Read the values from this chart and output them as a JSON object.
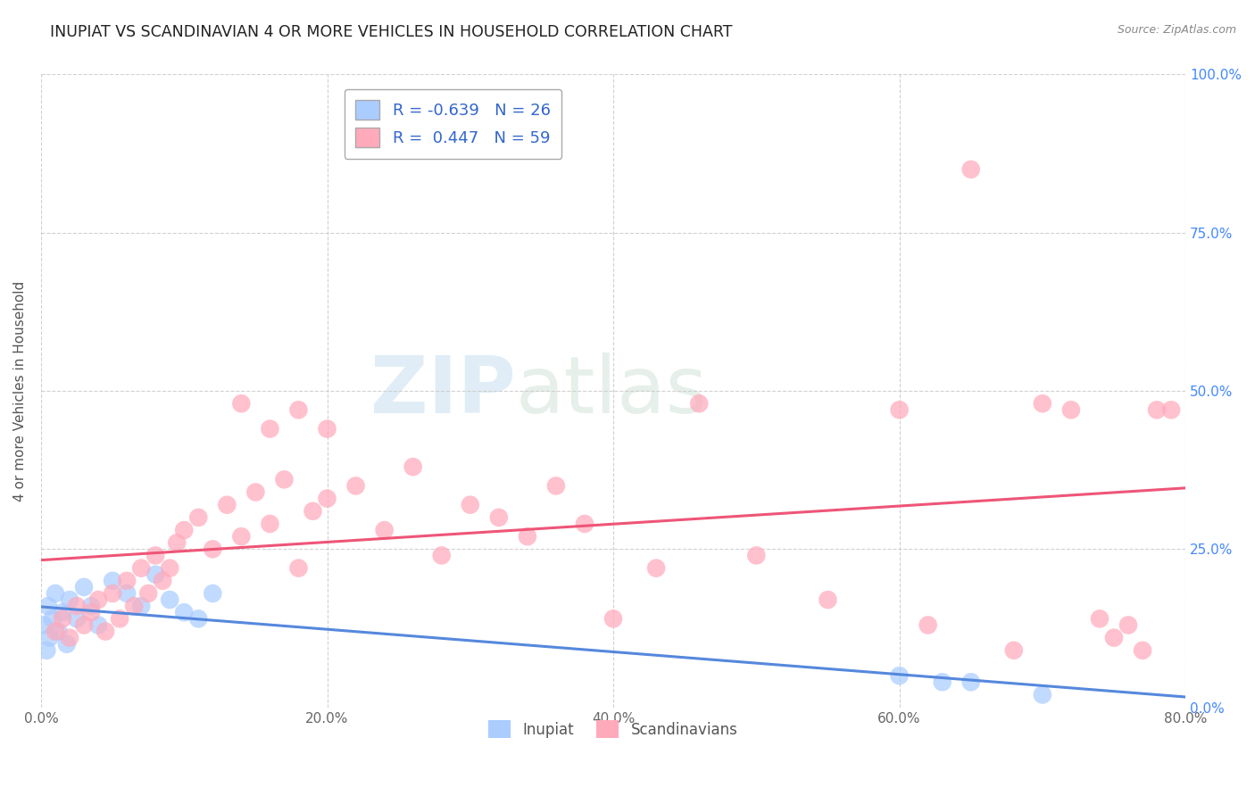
{
  "title": "INUPIAT VS SCANDINAVIAN 4 OR MORE VEHICLES IN HOUSEHOLD CORRELATION CHART",
  "source": "Source: ZipAtlas.com",
  "ylabel_label": "4 or more Vehicles in Household",
  "legend_label1": "Inupiat",
  "legend_label2": "Scandinavians",
  "legend_r1": "-0.639",
  "legend_n1": "26",
  "legend_r2": "0.447",
  "legend_n2": "59",
  "color_blue": "#aaccff",
  "color_pink": "#ffaabb",
  "line_blue": "#5588dd",
  "line_pink": "#ee5577",
  "xlim": [
    0,
    80
  ],
  "ylim": [
    0,
    100
  ],
  "figsize": [
    14.06,
    8.92
  ],
  "dpi": 100,
  "inupiat_x": [
    0.2,
    0.4,
    0.5,
    0.6,
    0.8,
    1.0,
    1.2,
    1.5,
    1.8,
    2.0,
    2.5,
    3.0,
    3.5,
    4.0,
    5.0,
    6.0,
    7.0,
    8.0,
    9.0,
    10.0,
    11.0,
    12.0,
    60.0,
    63.0,
    65.0,
    70.0
  ],
  "inupiat_y": [
    13.0,
    9.0,
    16.0,
    11.0,
    14.0,
    18.0,
    12.0,
    15.0,
    10.0,
    17.0,
    14.0,
    19.0,
    16.0,
    13.0,
    20.0,
    18.0,
    16.0,
    21.0,
    17.0,
    15.0,
    14.0,
    18.0,
    5.0,
    4.0,
    4.0,
    2.0
  ],
  "scand_x": [
    1.0,
    1.5,
    2.0,
    2.5,
    3.0,
    3.5,
    4.0,
    4.5,
    5.0,
    5.5,
    6.0,
    6.5,
    7.0,
    7.5,
    8.0,
    8.5,
    9.0,
    9.5,
    10.0,
    11.0,
    12.0,
    13.0,
    14.0,
    15.0,
    16.0,
    17.0,
    18.0,
    19.0,
    20.0,
    22.0,
    24.0,
    26.0,
    28.0,
    30.0,
    32.0,
    34.0,
    36.0,
    38.0,
    40.0,
    43.0,
    46.0,
    50.0,
    55.0,
    60.0,
    62.0,
    65.0,
    68.0,
    70.0,
    72.0,
    74.0,
    75.0,
    76.0,
    77.0,
    78.0,
    79.0,
    14.0,
    16.0,
    18.0,
    20.0
  ],
  "scand_y": [
    12.0,
    14.0,
    11.0,
    16.0,
    13.0,
    15.0,
    17.0,
    12.0,
    18.0,
    14.0,
    20.0,
    16.0,
    22.0,
    18.0,
    24.0,
    20.0,
    22.0,
    26.0,
    28.0,
    30.0,
    25.0,
    32.0,
    27.0,
    34.0,
    29.0,
    36.0,
    22.0,
    31.0,
    33.0,
    35.0,
    28.0,
    38.0,
    24.0,
    32.0,
    30.0,
    27.0,
    35.0,
    29.0,
    14.0,
    22.0,
    48.0,
    24.0,
    17.0,
    47.0,
    13.0,
    85.0,
    9.0,
    48.0,
    47.0,
    14.0,
    11.0,
    13.0,
    9.0,
    47.0,
    47.0,
    48.0,
    44.0,
    47.0,
    44.0
  ]
}
